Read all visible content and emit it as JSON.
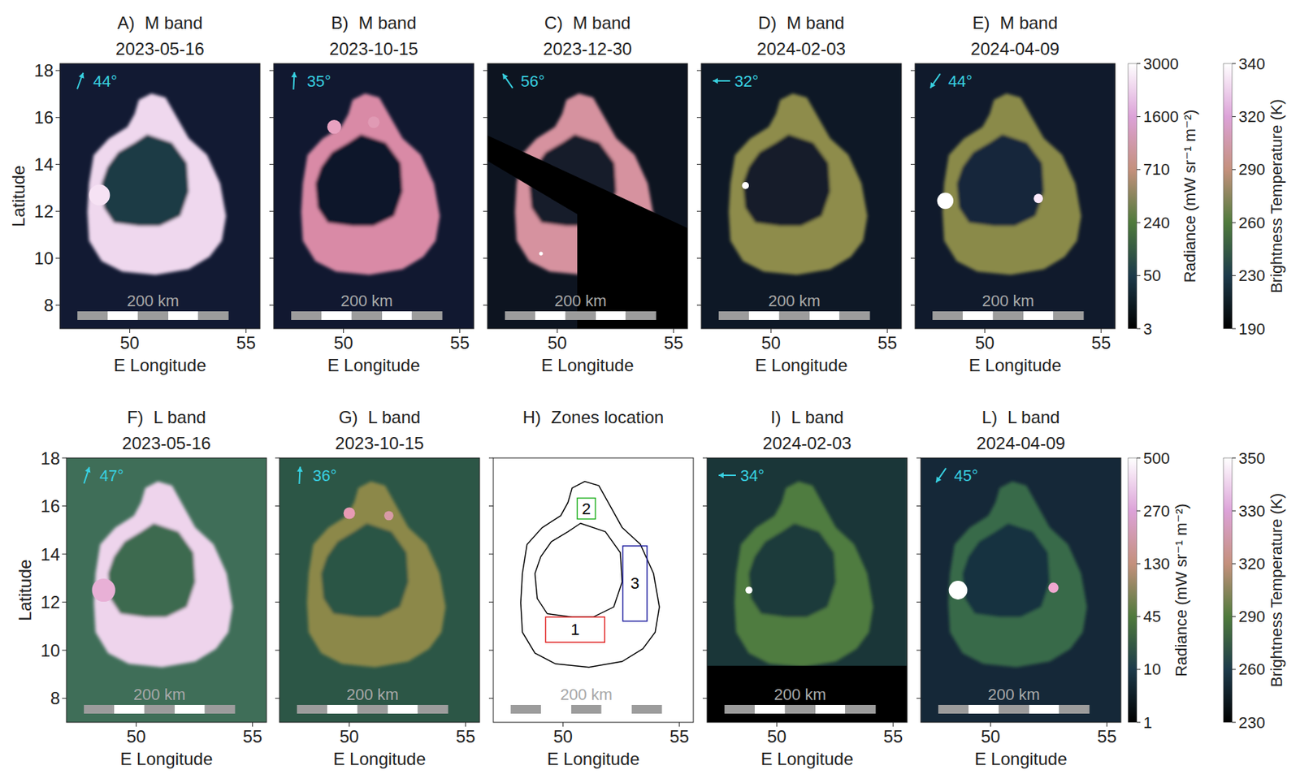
{
  "chart_data": [
    {
      "type": "image",
      "label": "A)",
      "title": "M band",
      "date": "2023-05-16",
      "xlabel": "E Longitude",
      "ylabel": "Latitude",
      "xlim": [
        47,
        55.6
      ],
      "ylim": [
        7,
        18.3
      ],
      "xticks": [
        50,
        55
      ],
      "yticks": [
        8,
        10,
        12,
        14,
        16,
        18
      ],
      "colors": [
        "#121a33",
        "#efd8ee",
        "#1e3a44"
      ],
      "north": {
        "label": "44°",
        "azimuth": 20
      },
      "scale_bar": {
        "label": "200 km",
        "span": [
          47.75,
          54.25
        ]
      },
      "hotspots": {
        "lon": [
          48.7
        ],
        "lat": [
          12.7
        ],
        "size": [
          0.45
        ],
        "colors": [
          "#f6e2f4"
        ]
      }
    },
    {
      "type": "image",
      "label": "B)",
      "title": "M band",
      "date": "2023-10-15",
      "xlabel": "E Longitude",
      "xlim": [
        47,
        55.6
      ],
      "ylim": [
        7,
        18.3
      ],
      "xticks": [
        50,
        55
      ],
      "yticks": [
        8,
        10,
        12,
        14,
        16,
        18
      ],
      "tick_labels": "x",
      "colors": [
        "#111830",
        "#d98aa6",
        "#10162a"
      ],
      "north": {
        "label": "35°",
        "azimuth": 3
      },
      "scale_bar": {
        "label": "200 km",
        "span": [
          47.75,
          54.25
        ]
      },
      "hotspots": {
        "lon": [
          49.6,
          51.3
        ],
        "lat": [
          15.6,
          15.8
        ],
        "size": [
          0.3,
          0.25
        ],
        "colors": [
          "#e8a2c0",
          "#e09ab4"
        ]
      }
    },
    {
      "type": "image",
      "label": "C)",
      "title": "M band",
      "date": "2023-12-30",
      "xlabel": "E Longitude",
      "xlim": [
        47,
        55.6
      ],
      "ylim": [
        7,
        18.3
      ],
      "xticks": [
        50,
        55
      ],
      "yticks": [
        8,
        10,
        12,
        14,
        16,
        18
      ],
      "tick_labels": "x",
      "colors": [
        "#0d1420",
        "#d6929f",
        "#121c2a"
      ],
      "north": {
        "label": "56°",
        "azimuth": -35
      },
      "scale_bar": {
        "label": "200 km",
        "span": [
          47.75,
          54.25
        ]
      },
      "hotspots": {
        "lon": [
          49.3
        ],
        "lat": [
          10.2
        ],
        "size": [
          0.08
        ],
        "colors": [
          "#ffffff"
        ]
      },
      "no_data": [
        {
          "lon": [
            47,
            55.6,
            55.6,
            50.86,
            50.86,
            47
          ],
          "lat": [
            15.24,
            11.29,
            7,
            7,
            11.88,
            14.15
          ]
        }
      ]
    },
    {
      "type": "image",
      "label": "D)",
      "title": "M band",
      "date": "2024-02-03",
      "xlabel": "E Longitude",
      "xlim": [
        47,
        55.6
      ],
      "ylim": [
        7,
        18.3
      ],
      "xticks": [
        50,
        55
      ],
      "yticks": [
        8,
        10,
        12,
        14,
        16,
        18
      ],
      "tick_labels": "x",
      "colors": [
        "#0e1826",
        "#8e8c4c",
        "#121c2c"
      ],
      "north": {
        "label": "32°",
        "azimuth": -90
      },
      "scale_bar": {
        "label": "200 km",
        "span": [
          47.75,
          54.25
        ]
      },
      "hotspots": {
        "lon": [
          48.9
        ],
        "lat": [
          13.1
        ],
        "size": [
          0.15
        ],
        "colors": [
          "#ffffff"
        ]
      }
    },
    {
      "type": "image",
      "label": "E)",
      "title": "M band",
      "date": "2024-04-09",
      "xlabel": "E Longitude",
      "xlim": [
        47,
        55.6
      ],
      "ylim": [
        7,
        18.3
      ],
      "xticks": [
        50,
        55
      ],
      "yticks": [
        8,
        10,
        12,
        14,
        16,
        18
      ],
      "tick_labels": "x",
      "colors": [
        "#101a2c",
        "#8a8a4a",
        "#16263a"
      ],
      "north": {
        "label": "44°",
        "azimuth": -145
      },
      "scale_bar": {
        "label": "200 km",
        "span": [
          47.75,
          54.25
        ]
      },
      "hotspots": {
        "lon": [
          48.3,
          52.3
        ],
        "lat": [
          12.45,
          12.55
        ],
        "size": [
          0.35,
          0.2
        ],
        "colors": [
          "#ffffff",
          "#fbe9fb"
        ]
      }
    },
    {
      "type": "image",
      "label": "F)",
      "title": "L band",
      "date": "2023-05-16",
      "xlabel": "E Longitude",
      "ylabel": "Latitude",
      "xlim": [
        47,
        55.6
      ],
      "ylim": [
        7,
        18
      ],
      "xticks": [
        50,
        55
      ],
      "yticks": [
        8,
        10,
        12,
        14,
        16,
        18
      ],
      "colors": [
        "#3f6e58",
        "#eed4ec",
        "#3e6a50"
      ],
      "north": {
        "label": "47°",
        "azimuth": 18
      },
      "scale_bar": {
        "label": "200 km",
        "span": [
          47.75,
          54.25
        ]
      },
      "hotspots": {
        "lon": [
          48.6
        ],
        "lat": [
          12.5
        ],
        "size": [
          0.5
        ],
        "colors": [
          "#e8b0d6"
        ]
      }
    },
    {
      "type": "image",
      "label": "G)",
      "title": "L band",
      "date": "2023-10-15",
      "xlabel": "E Longitude",
      "xlim": [
        47,
        55.6
      ],
      "ylim": [
        7,
        18
      ],
      "xticks": [
        50,
        55
      ],
      "yticks": [
        8,
        10,
        12,
        14,
        16,
        18
      ],
      "tick_labels": "x",
      "colors": [
        "#2c5646",
        "#8c8848",
        "#2c5444"
      ],
      "north": {
        "label": "36°",
        "azimuth": 3
      },
      "scale_bar": {
        "label": "200 km",
        "span": [
          47.75,
          54.25
        ]
      },
      "hotspots": {
        "lon": [
          50.0,
          51.7
        ],
        "lat": [
          15.7,
          15.6
        ],
        "size": [
          0.25,
          0.2
        ],
        "colors": [
          "#e79ab4",
          "#d89aa6"
        ]
      }
    },
    {
      "type": "outline",
      "label": "H)",
      "title": "Zones location",
      "xlabel": "E Longitude",
      "xlim": [
        47,
        55.6
      ],
      "ylim": [
        7,
        18
      ],
      "xticks": [
        50,
        55
      ],
      "yticks": [
        8,
        10,
        12,
        14,
        16,
        18
      ],
      "tick_labels": "x",
      "colors": [
        "#ffffff",
        "#000000"
      ],
      "scale_bar": {
        "label": "200 km",
        "span": [
          47.75,
          54.25
        ]
      },
      "zones": {
        "labels": [
          "1",
          "2",
          "3"
        ],
        "lon": [
          [
            49.25,
            51.79
          ],
          [
            50.61,
            51.39
          ],
          [
            52.57,
            53.61
          ]
        ],
        "lat": [
          [
            10.33,
            11.38
          ],
          [
            15.46,
            16.33
          ],
          [
            11.21,
            14.34
          ]
        ],
        "colors": [
          "#e02020",
          "#20b020",
          "#2020a0"
        ]
      }
    },
    {
      "type": "image",
      "label": "I)",
      "title": "L band",
      "date": "2024-02-03",
      "xlabel": "E Longitude",
      "xlim": [
        47,
        55.6
      ],
      "ylim": [
        7,
        18
      ],
      "xticks": [
        50,
        55
      ],
      "yticks": [
        8,
        10,
        12,
        14,
        16,
        18
      ],
      "tick_labels": "x",
      "colors": [
        "#1a3638",
        "#4f7c40",
        "#1c3a3a"
      ],
      "north": {
        "label": "34°",
        "azimuth": -90
      },
      "scale_bar": {
        "label": "200 km",
        "span": [
          47.75,
          54.25
        ]
      },
      "hotspots": {
        "lon": [
          48.8
        ],
        "lat": [
          12.5
        ],
        "size": [
          0.15
        ],
        "colors": [
          "#ffffff"
        ]
      },
      "no_data": [
        {
          "lon": [
            47,
            55.6,
            55.6,
            47
          ],
          "lat": [
            9.35,
            9.35,
            7,
            7
          ]
        }
      ]
    },
    {
      "type": "image",
      "label": "L)",
      "title": "L band",
      "date": "2024-04-09",
      "xlabel": "E Longitude",
      "xlim": [
        47,
        55.6
      ],
      "ylim": [
        7,
        18
      ],
      "xticks": [
        50,
        55
      ],
      "yticks": [
        8,
        10,
        12,
        14,
        16,
        18
      ],
      "tick_labels": "x",
      "colors": [
        "#152838",
        "#386a48",
        "#183040"
      ],
      "north": {
        "label": "45°",
        "azimuth": -145
      },
      "scale_bar": {
        "label": "200 km",
        "span": [
          47.75,
          54.25
        ]
      },
      "hotspots": {
        "lon": [
          48.6,
          52.7
        ],
        "lat": [
          12.5,
          12.6
        ],
        "size": [
          0.4,
          0.22
        ],
        "colors": [
          "#ffffff",
          "#f0a8d0"
        ]
      }
    },
    {
      "type": "colorbar",
      "title": "Radiance (mW sr⁻¹ m⁻²)",
      "ylim": [
        3,
        3000
      ],
      "yticks": [
        3,
        50,
        240,
        710,
        1600,
        3000
      ],
      "colors": [
        "#000000",
        "#1d3a4a",
        "#4f7a3c",
        "#c4907c",
        "#dca2d8",
        "#ffffff"
      ]
    },
    {
      "type": "colorbar",
      "title": "Brightness Temperature (K)",
      "ylim": [
        190,
        340
      ],
      "yticks": [
        190,
        230,
        260,
        290,
        320,
        340
      ],
      "colors": [
        "#000000",
        "#1d3a4a",
        "#4f7a3c",
        "#c4907c",
        "#dca2d8",
        "#ffffff"
      ]
    },
    {
      "type": "colorbar",
      "title": "Radiance (mW sr⁻¹ m⁻²)",
      "ylim": [
        1,
        500
      ],
      "yticks": [
        1,
        10,
        45,
        130,
        270,
        500
      ],
      "colors": [
        "#000000",
        "#1d3a4a",
        "#4f7a3c",
        "#c4907c",
        "#dca2d8",
        "#ffffff"
      ]
    },
    {
      "type": "colorbar",
      "title": "Brightness Temperature (K)",
      "ylim": [
        230,
        350
      ],
      "yticks": [
        230,
        260,
        290,
        320,
        330,
        350
      ],
      "colors": [
        "#000000",
        "#1d3a4a",
        "#4f7a3c",
        "#c4907c",
        "#dca2d8",
        "#ffffff"
      ]
    }
  ],
  "lake": {
    "outer": {
      "lon": [
        50.39,
        50.93,
        51.54,
        52.0,
        52.54,
        53.32,
        53.89,
        54.14,
        53.96,
        53.43,
        52.54,
        51.11,
        49.68,
        48.79,
        48.25,
        48.18,
        48.25,
        48.45,
        49.1,
        49.9,
        50.21
      ],
      "lat": [
        16.75,
        17.02,
        16.85,
        16.05,
        15.11,
        14.41,
        13.19,
        11.8,
        10.75,
        10.06,
        9.53,
        9.29,
        9.43,
        9.88,
        10.75,
        11.97,
        13.19,
        14.4,
        15.1,
        15.6,
        16.15
      ]
    },
    "island": {
      "lon": [
        50.75,
        51.82,
        52.46,
        52.54,
        52.18,
        51.29,
        50.39,
        49.32,
        48.89,
        48.79,
        49.04,
        49.5,
        50.21
      ],
      "lat": [
        15.28,
        14.93,
        14.06,
        12.84,
        11.8,
        11.38,
        11.38,
        11.52,
        12.15,
        13.19,
        13.89,
        14.52,
        14.93
      ]
    }
  }
}
